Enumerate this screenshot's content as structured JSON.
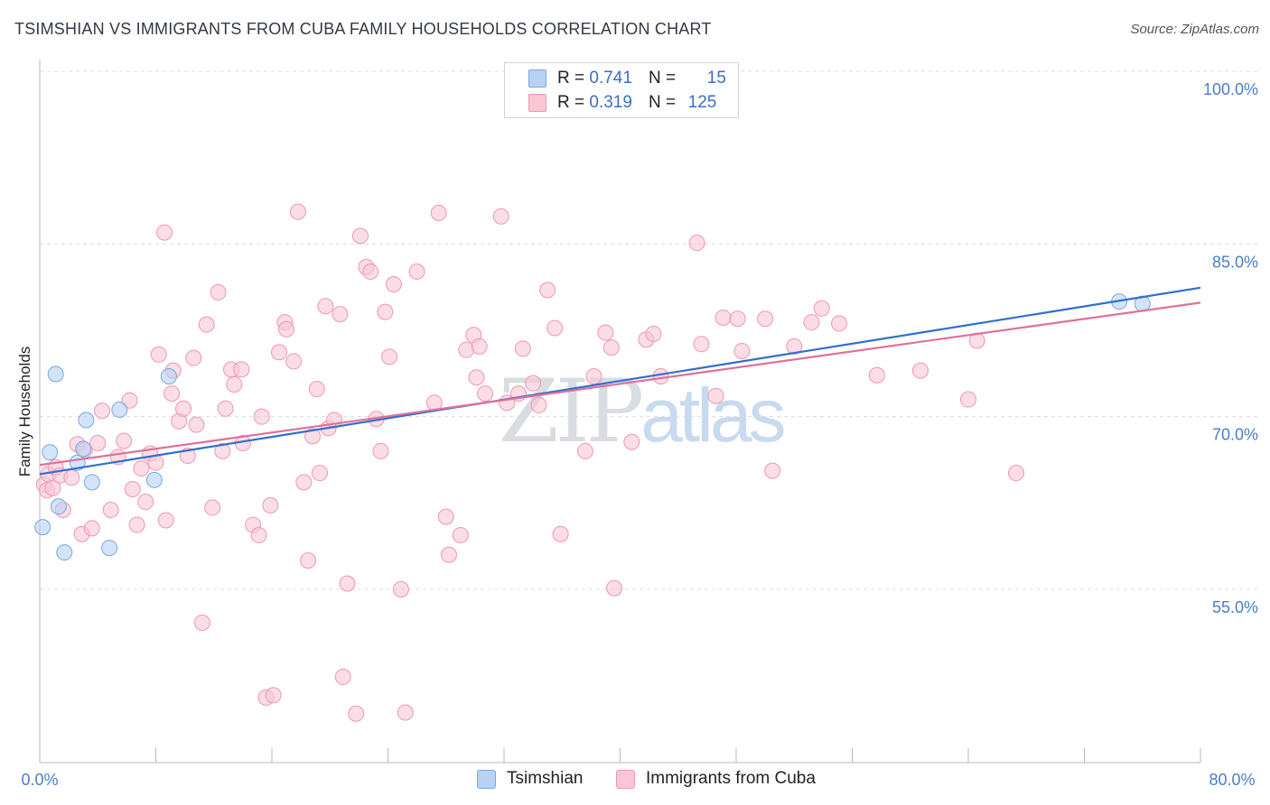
{
  "title": "TSIMSHIAN VS IMMIGRANTS FROM CUBA FAMILY HOUSEHOLDS CORRELATION CHART",
  "source": "Source: ZipAtlas.com",
  "watermark": {
    "zip": "ZIP",
    "atlas": "atlas"
  },
  "colors": {
    "blue_fill": "#b8d2f3",
    "blue_stroke": "#7aa7de",
    "blue_line": "#2f6fcf",
    "pink_fill": "#f9c6d5",
    "pink_stroke": "#ef97b1",
    "pink_line": "#e0709a",
    "grid": "#d8dce2",
    "tick_text": "#4a7fc4"
  },
  "legend_top": [
    {
      "r_label": "R =",
      "r_value": "0.741",
      "n_label": "N =",
      "n_value": "15",
      "color": "blue"
    },
    {
      "r_label": "R =",
      "r_value": "0.319",
      "n_label": "N =",
      "n_value": "125",
      "color": "pink"
    }
  ],
  "legend_bottom": [
    {
      "label": "Tsimshian",
      "color": "blue"
    },
    {
      "label": "Immigrants from Cuba",
      "color": "pink"
    }
  ],
  "chart_data": {
    "type": "scatter",
    "title": "TSIMSHIAN VS IMMIGRANTS FROM CUBA FAMILY HOUSEHOLDS CORRELATION CHART",
    "xlabel": "",
    "ylabel": "Family Households",
    "xlim": [
      0,
      80
    ],
    "ylim": [
      40,
      102
    ],
    "x_tick_labels": [
      "0.0%",
      "80.0%"
    ],
    "y_ticks": [
      55,
      70,
      85,
      100
    ],
    "y_tick_labels": [
      "55.0%",
      "70.0%",
      "85.0%",
      "100.0%"
    ],
    "x_minor_ticks": [
      0,
      8,
      16,
      24,
      32,
      40,
      48,
      56,
      64,
      72,
      80
    ],
    "grid": true,
    "series": [
      {
        "name": "Tsimshian",
        "color": "blue",
        "trend": {
          "x": [
            0,
            80
          ],
          "y": [
            65.0,
            81.2
          ]
        },
        "points": [
          [
            0.2,
            60.4
          ],
          [
            0.7,
            66.9
          ],
          [
            1.1,
            73.7
          ],
          [
            1.3,
            62.2
          ],
          [
            1.7,
            58.2
          ],
          [
            2.6,
            66.0
          ],
          [
            3.0,
            67.2
          ],
          [
            3.2,
            69.7
          ],
          [
            3.6,
            64.3
          ],
          [
            5.5,
            70.6
          ],
          [
            4.8,
            58.6
          ],
          [
            7.9,
            64.5
          ],
          [
            8.9,
            73.5
          ],
          [
            74.4,
            80.0
          ],
          [
            76.0,
            79.8
          ]
        ]
      },
      {
        "name": "Immigrants from Cuba",
        "color": "pink",
        "trend": {
          "x": [
            0,
            80
          ],
          "y": [
            65.8,
            79.9
          ]
        },
        "points": [
          [
            0.3,
            64.1
          ],
          [
            0.5,
            63.6
          ],
          [
            0.6,
            65.0
          ],
          [
            0.9,
            63.8
          ],
          [
            1.1,
            65.6
          ],
          [
            1.4,
            64.9
          ],
          [
            1.6,
            61.9
          ],
          [
            2.2,
            64.7
          ],
          [
            2.6,
            67.6
          ],
          [
            2.9,
            59.8
          ],
          [
            3.1,
            67.1
          ],
          [
            3.6,
            60.3
          ],
          [
            4.0,
            67.7
          ],
          [
            4.3,
            70.5
          ],
          [
            4.9,
            61.9
          ],
          [
            5.4,
            66.5
          ],
          [
            5.8,
            67.9
          ],
          [
            6.2,
            71.4
          ],
          [
            6.4,
            63.7
          ],
          [
            6.7,
            60.6
          ],
          [
            7.0,
            65.5
          ],
          [
            7.3,
            62.6
          ],
          [
            7.6,
            66.8
          ],
          [
            8.0,
            66.0
          ],
          [
            8.2,
            75.4
          ],
          [
            8.6,
            86.0
          ],
          [
            8.7,
            61.0
          ],
          [
            9.1,
            72.0
          ],
          [
            9.2,
            74.0
          ],
          [
            9.6,
            69.6
          ],
          [
            9.9,
            70.7
          ],
          [
            10.2,
            66.6
          ],
          [
            10.6,
            75.1
          ],
          [
            10.8,
            69.3
          ],
          [
            11.2,
            52.1
          ],
          [
            11.5,
            78.0
          ],
          [
            11.9,
            62.1
          ],
          [
            12.3,
            80.8
          ],
          [
            12.6,
            67.0
          ],
          [
            12.8,
            70.7
          ],
          [
            13.2,
            74.1
          ],
          [
            13.4,
            72.8
          ],
          [
            13.9,
            74.1
          ],
          [
            14.0,
            67.7
          ],
          [
            14.7,
            60.6
          ],
          [
            15.1,
            59.7
          ],
          [
            15.3,
            70.0
          ],
          [
            15.6,
            45.6
          ],
          [
            15.9,
            62.3
          ],
          [
            16.1,
            45.8
          ],
          [
            16.5,
            75.6
          ],
          [
            16.9,
            78.2
          ],
          [
            17.0,
            77.6
          ],
          [
            17.5,
            74.8
          ],
          [
            17.8,
            87.8
          ],
          [
            18.2,
            64.3
          ],
          [
            18.5,
            57.5
          ],
          [
            18.8,
            68.3
          ],
          [
            19.1,
            72.4
          ],
          [
            19.3,
            65.1
          ],
          [
            19.7,
            79.6
          ],
          [
            19.9,
            69.0
          ],
          [
            20.3,
            69.7
          ],
          [
            20.7,
            78.9
          ],
          [
            20.9,
            47.4
          ],
          [
            21.2,
            55.5
          ],
          [
            21.8,
            44.2
          ],
          [
            22.1,
            85.7
          ],
          [
            22.5,
            83.0
          ],
          [
            22.8,
            82.6
          ],
          [
            23.2,
            69.8
          ],
          [
            23.5,
            67.0
          ],
          [
            23.8,
            79.1
          ],
          [
            24.1,
            75.2
          ],
          [
            24.4,
            81.5
          ],
          [
            24.9,
            55.0
          ],
          [
            25.2,
            44.3
          ],
          [
            26.0,
            82.6
          ],
          [
            27.2,
            71.2
          ],
          [
            27.5,
            87.7
          ],
          [
            28.0,
            61.3
          ],
          [
            28.2,
            58.0
          ],
          [
            29.0,
            59.7
          ],
          [
            29.4,
            75.8
          ],
          [
            29.9,
            77.1
          ],
          [
            30.1,
            73.4
          ],
          [
            30.3,
            76.1
          ],
          [
            30.7,
            72.0
          ],
          [
            31.8,
            87.4
          ],
          [
            32.2,
            71.2
          ],
          [
            33.0,
            72.0
          ],
          [
            33.3,
            75.9
          ],
          [
            34.0,
            72.9
          ],
          [
            34.4,
            71.0
          ],
          [
            35.0,
            81.0
          ],
          [
            35.5,
            77.7
          ],
          [
            35.9,
            59.8
          ],
          [
            37.6,
            67.0
          ],
          [
            38.2,
            73.5
          ],
          [
            39.0,
            77.3
          ],
          [
            39.4,
            76.0
          ],
          [
            39.6,
            55.1
          ],
          [
            40.8,
            67.8
          ],
          [
            41.8,
            76.7
          ],
          [
            42.3,
            77.2
          ],
          [
            42.8,
            73.5
          ],
          [
            45.3,
            85.1
          ],
          [
            45.6,
            76.3
          ],
          [
            46.6,
            71.8
          ],
          [
            47.1,
            78.6
          ],
          [
            48.1,
            78.5
          ],
          [
            48.4,
            75.7
          ],
          [
            50.0,
            78.5
          ],
          [
            50.5,
            65.3
          ],
          [
            52.0,
            76.1
          ],
          [
            53.2,
            78.2
          ],
          [
            53.9,
            79.4
          ],
          [
            55.1,
            78.1
          ],
          [
            57.7,
            73.6
          ],
          [
            60.7,
            74.0
          ],
          [
            64.0,
            71.5
          ],
          [
            64.6,
            76.6
          ],
          [
            67.3,
            65.1
          ]
        ]
      }
    ]
  }
}
